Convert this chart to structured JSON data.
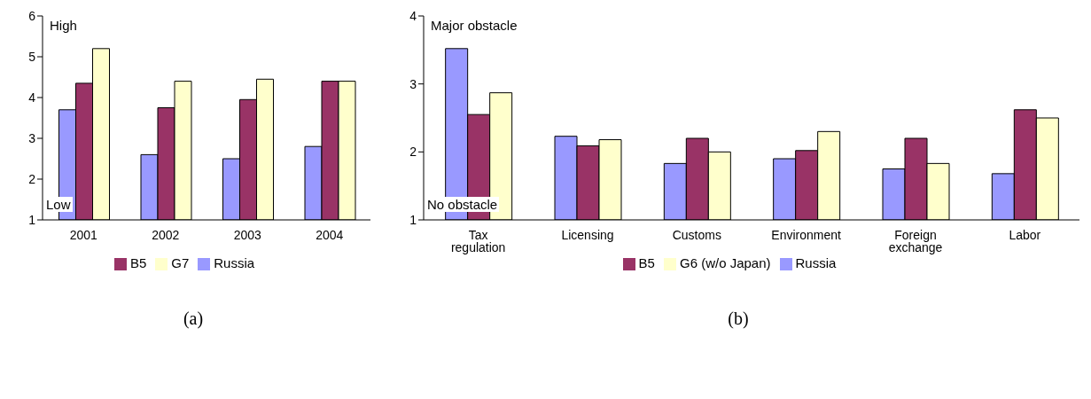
{
  "chart_data": [
    {
      "type": "bar",
      "categories": [
        "2001",
        "2002",
        "2003",
        "2004"
      ],
      "series": [
        {
          "name": "Russia",
          "color": "#9999ff",
          "values": [
            3.7,
            2.6,
            2.5,
            2.8
          ]
        },
        {
          "name": "B5",
          "color": "#993366",
          "values": [
            4.35,
            3.75,
            3.95,
            4.4
          ]
        },
        {
          "name": "G7",
          "color": "#ffffcc",
          "values": [
            5.2,
            4.4,
            4.45,
            4.4
          ]
        }
      ],
      "ylim": [
        1,
        6
      ],
      "yticks": [
        1,
        2,
        3,
        4,
        5,
        6
      ],
      "grid": false,
      "legend": "bottom",
      "annotations": [
        "High",
        "Low",
        "(a)"
      ]
    },
    {
      "type": "bar",
      "categories": [
        "Tax regulation",
        "Licensing",
        "Customs",
        "Environment",
        "Foreign exchange",
        "Labor"
      ],
      "series": [
        {
          "name": "Russia",
          "color": "#9999ff",
          "values": [
            3.52,
            2.23,
            1.83,
            1.9,
            1.75,
            1.68
          ]
        },
        {
          "name": "B5",
          "color": "#993366",
          "values": [
            2.55,
            2.09,
            2.2,
            2.02,
            2.2,
            2.62
          ]
        },
        {
          "name": "G6 (w/o Japan)",
          "color": "#ffffcc",
          "values": [
            2.87,
            2.18,
            2.0,
            2.3,
            1.83,
            2.5
          ]
        }
      ],
      "ylim": [
        1,
        4
      ],
      "yticks": [
        1,
        2,
        3,
        4
      ],
      "grid": false,
      "legend": "bottom",
      "annotations": [
        "Major obstacle",
        "No obstacle",
        "(b)"
      ]
    }
  ]
}
